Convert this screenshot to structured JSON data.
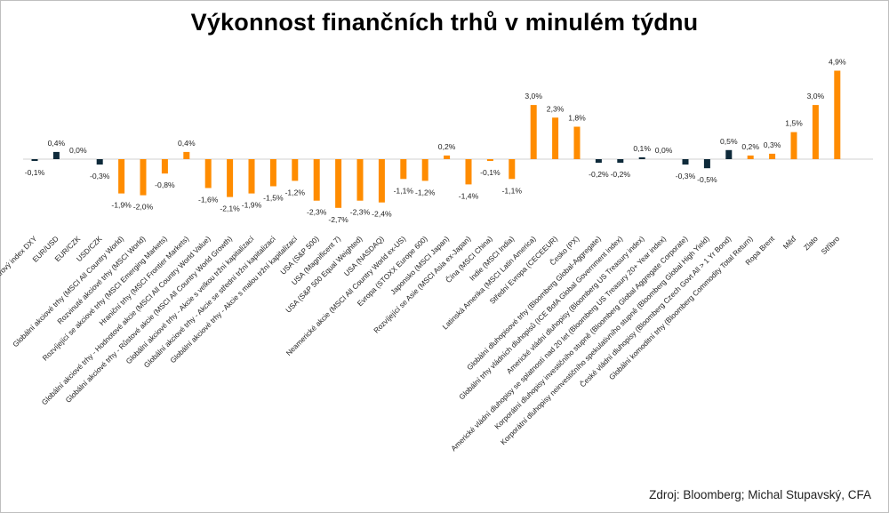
{
  "title": "Výkonnost finančních trhů v minulém týdnu",
  "source": "Zdroj: Bloomberg; Michal Stupavský, CFA",
  "colors": {
    "orange": "#FF8C00",
    "navy": "#0E2A3A"
  },
  "chart_data": {
    "type": "bar",
    "title": "Výkonnost finančních trhů v minulém týdnu",
    "xlabel": "",
    "ylabel": "",
    "ylim": [
      -2.7,
      4.9
    ],
    "grid": false,
    "legend": "none",
    "categories": [
      "Dolarový index DXY",
      "EUR/USD",
      "EUR/CZK",
      "USD/CZK",
      "Globální akciové trhy (MSCI All Country World)",
      "Rozvinuté akciové trhy (MSCI World)",
      "Rozvíjející se akciové trhy (MSCI Emerging Markets)",
      "Hraniční trhy (MSCI Frontier Markets)",
      "Globální akciové trhy - Hodnotové akcie (MSCI All Country World Value)",
      "Globální akciové trhy - Růstové akcie (MSCI All Country World Growth)",
      "Globální akciové trhy - Akcie s velkou tržní kapitalizací",
      "Globální akciové trhy - Akcie se střední tržní kapitalizací",
      "Globální akciové trhy - Akcie s malou tržní kapitalizací",
      "USA (S&P 500)",
      "USA (Magnificent 7)",
      "USA (S&P 500 Equal Weighted)",
      "USA (NASDAQ)",
      "Neamerické akcie (MSCI All Country World ex-US)",
      "Evropa (STOXX Europe 600)",
      "Japonsko (MSCI Japan)",
      "Rozvíjející se Asie (MSCI Asia ex-Japan)",
      "Čína (MSCI China)",
      "Indie (MSCI India)",
      "Latinská Amerika (MSCI Latin America)",
      "Střední Evropa (CECEEUR)",
      "Česko (PX)",
      "Globální dluhopisové trhy (Bloomberg Global-Aggregate)",
      "Globální trhy vládních dluhopisů (ICE BofA Global Government index)",
      "Americké vládní dluhopisy (Bloomberg US Treasury index)",
      "Americké vládní dluhopisy se splatností nad 20 let (Bloomberg US Treasury 20+ Year index)",
      "Korporátní dluhopisy investičního stupně (Bloomberg Global Aggregate Corporate)",
      "Korporátní dluhopisy neinvestičního spekulativního stupně (Bloomberg Global High Yield)",
      "České vládní dluhopisy (Bloomberg Czech Govt All > 1 Yr Bond)",
      "Globální komoditní trhy (Bloomberg Commodity Total Return)",
      "Ropa Brent",
      "Měď",
      "Zlato",
      "Stříbro"
    ],
    "values": [
      -0.1,
      0.4,
      0.0,
      -0.3,
      -1.9,
      -2.0,
      -0.8,
      0.4,
      -1.6,
      -2.1,
      -1.9,
      -1.5,
      -1.2,
      -2.3,
      -2.7,
      -2.3,
      -2.4,
      -1.1,
      -1.2,
      0.2,
      -1.4,
      -0.1,
      -1.1,
      3.0,
      2.3,
      1.8,
      -0.2,
      -0.2,
      0.1,
      0.0,
      -0.3,
      -0.5,
      0.5,
      0.2,
      0.3,
      1.5,
      3.0,
      4.9
    ],
    "data_labels": [
      "-0,1%",
      "0,4%",
      "0,0%",
      "-0,3%",
      "-1,9%",
      "-2,0%",
      "-0,8%",
      "0,4%",
      "-1,6%",
      "-2,1%",
      "-1,9%",
      "-1,5%",
      "-1,2%",
      "-2,3%",
      "-2,7%",
      "-2,3%",
      "-2,4%",
      "-1,1%",
      "-1,2%",
      "0,2%",
      "-1,4%",
      "-0,1%",
      "-1,1%",
      "3,0%",
      "2,3%",
      "1,8%",
      "-0,2%",
      "-0,2%",
      "0,1%",
      "0,0%",
      "-0,3%",
      "-0,5%",
      "0,5%",
      "0,2%",
      "0,3%",
      "1,5%",
      "3,0%",
      "4,9%"
    ],
    "bar_colors": [
      "navy",
      "navy",
      "navy",
      "navy",
      "orange",
      "orange",
      "orange",
      "orange",
      "orange",
      "orange",
      "orange",
      "orange",
      "orange",
      "orange",
      "orange",
      "orange",
      "orange",
      "orange",
      "orange",
      "orange",
      "orange",
      "orange",
      "orange",
      "orange",
      "orange",
      "orange",
      "navy",
      "navy",
      "navy",
      "navy",
      "navy",
      "navy",
      "navy",
      "orange",
      "orange",
      "orange",
      "orange",
      "orange"
    ]
  }
}
